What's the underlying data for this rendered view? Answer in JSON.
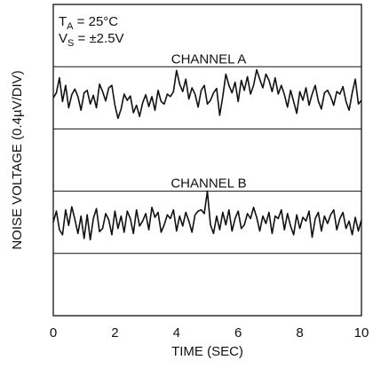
{
  "chart_data": {
    "type": "line",
    "title": "",
    "xlabel": "TIME (SEC)",
    "ylabel": "NOISE VOLTAGE (0.4µV/DIV)",
    "xlim": [
      0,
      10
    ],
    "x_ticks": [
      "0",
      "2",
      "4",
      "6",
      "8",
      "10"
    ],
    "y_divisions": 5,
    "grid": true,
    "conditions": {
      "ta": {
        "base": "T",
        "sub": "A",
        "rest": " = 25°C"
      },
      "vs": {
        "base": "V",
        "sub": "S",
        "rest": " = ±2.5V"
      }
    },
    "series": [
      {
        "name": "CHANNEL A",
        "baseline_div": 3.5,
        "values": [
          0,
          0.08,
          0.32,
          -0.06,
          0.2,
          -0.16,
          0.05,
          0.14,
          0.02,
          -0.2,
          0.08,
          0.12,
          -0.1,
          0.04,
          -0.16,
          0.22,
          0.1,
          -0.05,
          0.16,
          0.2,
          -0.12,
          -0.33,
          -0.18,
          0.06,
          -0.04,
          0.03,
          -0.24,
          -0.12,
          -0.3,
          -0.08,
          0.05,
          -0.14,
          0.02,
          -0.2,
          0.12,
          -0.06,
          -0.1,
          0.06,
          0.02,
          0.1,
          0.44,
          0.22,
          0.1,
          0.3,
          -0.02,
          0.16,
          0.06,
          -0.15,
          0.12,
          0.2,
          -0.1,
          -0.04,
          0.08,
          0.15,
          -0.28,
          0.02,
          0.38,
          0.2,
          0.08,
          0.25,
          -0.06,
          0.28,
          0.12,
          0.34,
          0.06,
          0.2,
          0.45,
          0.3,
          0.16,
          0.38,
          0.28,
          0.1,
          0.32,
          0.06,
          0.2,
          0.05,
          -0.15,
          0.12,
          -0.06,
          -0.25,
          0.1,
          -0.04,
          0.16,
          -0.12,
          0.06,
          0.2,
          -0.05,
          -0.18,
          0.08,
          0.12,
          0.02,
          -0.12,
          0.1,
          0.06,
          0.18,
          -0.06,
          -0.2,
          0.08,
          0.3,
          -0.1,
          -0.04
        ]
      },
      {
        "name": "CHANNEL B",
        "baseline_div": 1.5,
        "values": [
          0,
          0.18,
          -0.12,
          -0.2,
          0.2,
          -0.05,
          0.25,
          0.05,
          -0.18,
          0.1,
          -0.26,
          0.12,
          -0.28,
          0.06,
          0.22,
          -0.15,
          -0.1,
          0.14,
          0.04,
          -0.2,
          0.18,
          -0.1,
          0.1,
          -0.16,
          0.18,
          0.06,
          -0.18,
          0.2,
          -0.06,
          0.02,
          0.14,
          -0.12,
          0.24,
          0.08,
          0.16,
          -0.16,
          -0.04,
          0.12,
          0.06,
          0.2,
          -0.14,
          0.1,
          -0.06,
          0.16,
          0.02,
          -0.16,
          0.12,
          0.18,
          0.2,
          0.14,
          0.5,
          -0.04,
          -0.18,
          0.1,
          -0.12,
          0.16,
          -0.04,
          0.2,
          -0.14,
          0.06,
          0.18,
          -0.1,
          -0.04,
          0.14,
          0.06,
          0.24,
          0.08,
          -0.14,
          0.1,
          -0.02,
          0.16,
          -0.18,
          0.1,
          0.06,
          0.2,
          -0.12,
          0.14,
          -0.06,
          -0.2,
          0.12,
          -0.1,
          0.08,
          0.02,
          0.18,
          -0.24,
          0.06,
          0.16,
          -0.14,
          0.1,
          -0.02,
          0.12,
          0.2,
          -0.12,
          0.06,
          0.16,
          -0.1,
          0.02,
          -0.2,
          0.08,
          -0.14,
          0.04
        ]
      }
    ]
  }
}
